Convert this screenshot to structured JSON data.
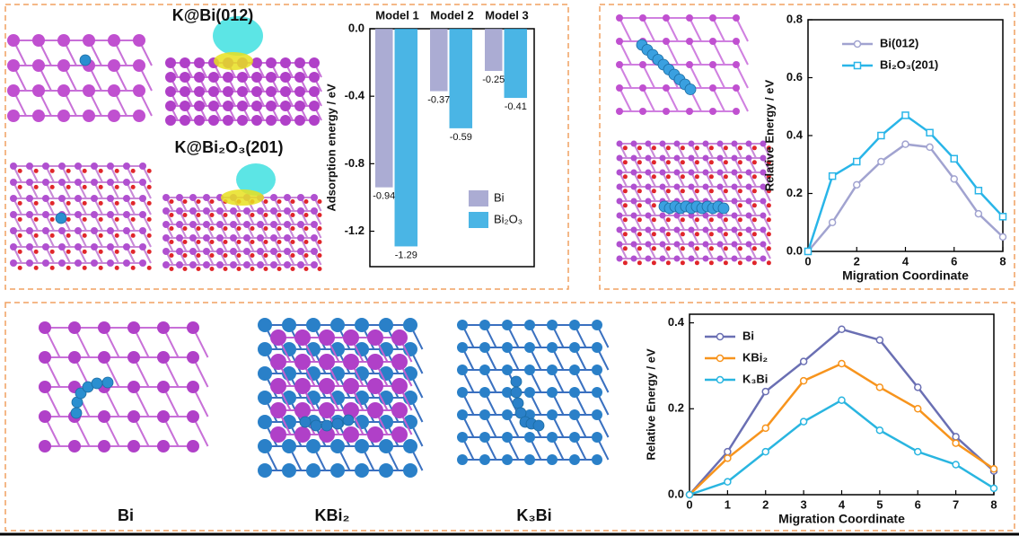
{
  "structure_labels": [
    "K@Bi(012)",
    "K@Bi₂O₃(201)",
    "Bi",
    "KBi₂",
    "K₃Bi"
  ],
  "chart_data": [
    {
      "type": "bar",
      "categories": [
        "Model 1",
        "Model 2",
        "Model 3"
      ],
      "series": [
        {
          "name": "Bi",
          "color": "#9c9ecb",
          "values": [
            -0.94,
            -0.37,
            -0.25
          ]
        },
        {
          "name": "Bi₂O₃",
          "color": "#2aa8e0",
          "values": [
            -1.29,
            -0.59,
            -0.41
          ]
        }
      ],
      "ylabel": "Adsorption energy / eV",
      "ylim": [
        -1.41,
        0
      ],
      "yticks": [
        {
          "value": 0,
          "label": "0.0"
        },
        -0.4,
        -0.8,
        -1.2
      ]
    },
    {
      "type": "line",
      "x": [
        0,
        1,
        2,
        3,
        4,
        5,
        6,
        7,
        8
      ],
      "series": [
        {
          "name": "Bi(012)",
          "color": "#a1a3d0",
          "marker": "circle",
          "values": [
            0,
            0.1,
            0.23,
            0.31,
            0.37,
            0.36,
            0.25,
            0.13,
            0.05
          ]
        },
        {
          "name": "Bi₂O₃(201)",
          "color": "#29b5e8",
          "marker": "square",
          "values": [
            0,
            0.26,
            0.31,
            0.4,
            0.47,
            0.41,
            0.32,
            0.21,
            0.12
          ]
        }
      ],
      "xlabel": "Migration Coordinate",
      "ylabel": "Relative Energy / eV",
      "xlim": [
        0,
        8
      ],
      "xticks": [
        0,
        2,
        4,
        6,
        8
      ],
      "ylim": [
        0,
        0.8
      ],
      "yticks": [
        {
          "value": 0,
          "label": "0.0"
        },
        0.2,
        0.4,
        0.6,
        0.8
      ]
    },
    {
      "type": "line",
      "x": [
        0,
        1,
        2,
        3,
        4,
        5,
        6,
        7,
        8
      ],
      "series": [
        {
          "name": "Bi",
          "color": "#6a6fb3",
          "marker": "circle",
          "values": [
            0,
            0.1,
            0.24,
            0.31,
            0.385,
            0.36,
            0.25,
            0.135,
            0.055
          ]
        },
        {
          "name": "KBi₂",
          "color": "#f7941d",
          "marker": "circle",
          "values": [
            0,
            0.085,
            0.155,
            0.265,
            0.305,
            0.25,
            0.2,
            0.12,
            0.06
          ]
        },
        {
          "name": "K₃Bi",
          "color": "#29b5e0",
          "marker": "circle",
          "values": [
            0,
            0.03,
            0.1,
            0.17,
            0.22,
            0.15,
            0.1,
            0.07,
            0.015
          ]
        }
      ],
      "xlabel": "Migration Coordinate",
      "ylabel": "Relative Energy / eV",
      "xlim": [
        0,
        8
      ],
      "xticks": [
        0,
        1,
        2,
        3,
        4,
        5,
        6,
        7,
        8
      ],
      "ylim": [
        0,
        0.42
      ],
      "yticks": [
        {
          "value": 0,
          "label": "0.0"
        },
        0.2,
        0.4
      ]
    }
  ]
}
